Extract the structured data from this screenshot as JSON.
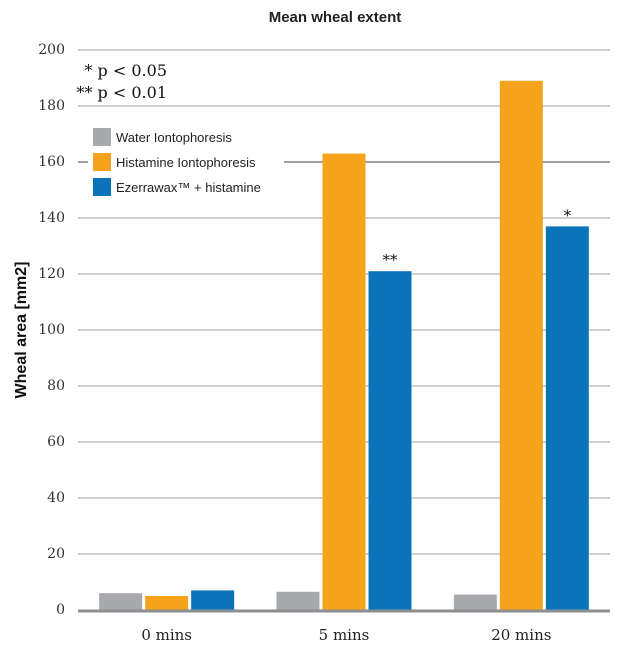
{
  "chart_data": {
    "type": "bar",
    "title": "Mean wheal extent",
    "xlabel": "",
    "ylabel": "Wheal area [mm2]",
    "ylim": [
      0,
      200
    ],
    "yticks": [
      0,
      20,
      40,
      60,
      80,
      100,
      120,
      140,
      160,
      180,
      200
    ],
    "categories": [
      "0 mins",
      "5 mins",
      "20 mins"
    ],
    "series": [
      {
        "name": "Water Iontophoresis",
        "color": "#a7a9ac",
        "values": [
          6,
          6.5,
          5.5
        ]
      },
      {
        "name": "Histamine Iontophoresis",
        "color": "#f7a21b",
        "values": [
          5,
          163,
          189
        ]
      },
      {
        "name": "Ezerrawax™ + histamine",
        "color": "#0a73b9",
        "values": [
          7,
          121,
          137
        ]
      }
    ],
    "significance": [
      {
        "category": "5 mins",
        "series": "Ezerrawax™ + histamine",
        "mark": "**"
      },
      {
        "category": "20 mins",
        "series": "Ezerrawax™ + histamine",
        "mark": "*"
      }
    ],
    "notes": [
      "* p < 0.05",
      "** p < 0.01"
    ],
    "grid": true,
    "legend_position": "top-left"
  },
  "colors": {
    "gridline": "#9d9fa2",
    "axis": "#8c8e91"
  }
}
